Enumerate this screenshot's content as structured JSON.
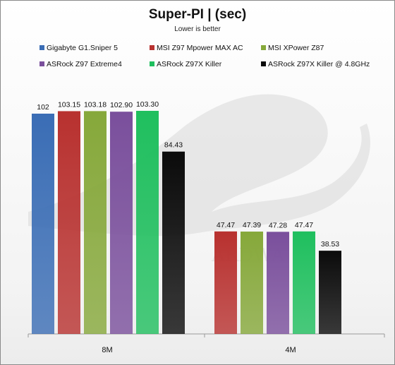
{
  "chart_data": {
    "type": "bar",
    "title": "Super-PI | (sec)",
    "subtitle": "Lower is better",
    "categories": [
      "8M",
      "4M"
    ],
    "ylim": [
      0,
      110
    ],
    "grid": false,
    "legend_position": "top",
    "series": [
      {
        "name": "Gigabyte G1.Sniper 5",
        "color": "#3a6db5",
        "values": [
          102,
          null
        ],
        "labels": [
          "102",
          ""
        ]
      },
      {
        "name": "MSI Z97 Mpower MAX AC",
        "color": "#b8312f",
        "values": [
          103.15,
          47.47
        ],
        "labels": [
          "103.15",
          "47.47"
        ]
      },
      {
        "name": "MSI XPower Z87",
        "color": "#86a83a",
        "values": [
          103.18,
          47.39
        ],
        "labels": [
          "103.18",
          "47.39"
        ]
      },
      {
        "name": "ASRock Z97 Extreme4",
        "color": "#7a4f9c",
        "values": [
          102.9,
          47.28
        ],
        "labels": [
          "102.90",
          "47.28"
        ]
      },
      {
        "name": "ASRock Z97X Killer",
        "color": "#1fbf5e",
        "values": [
          103.3,
          47.47
        ],
        "labels": [
          "103.30",
          "47.47"
        ]
      },
      {
        "name": "ASRock Z97X Killer @ 4.8GHz",
        "color": "#0b0b0b",
        "values": [
          84.43,
          38.53
        ],
        "labels": [
          "84.43",
          "38.53"
        ]
      }
    ]
  }
}
